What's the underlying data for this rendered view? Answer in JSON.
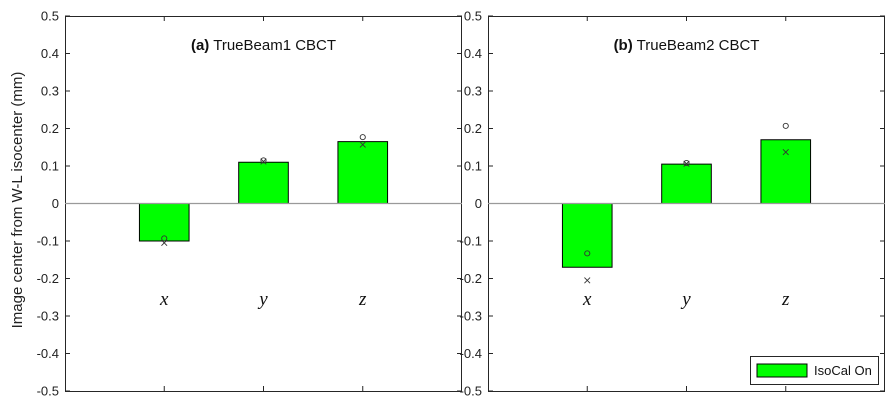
{
  "ylabel": "Image center from W-L isocenter (mm)",
  "legend": {
    "label": "IsoCal On",
    "color": "#00ff00"
  },
  "colors": {
    "bar": "#00ff00",
    "edge": "#000000",
    "zero_line": "#9a9a9a",
    "marker": "#333333"
  },
  "chart_data": [
    {
      "type": "bar",
      "title_tag": "(a)",
      "title": "TrueBeam1 CBCT",
      "categories": [
        "x",
        "y",
        "z"
      ],
      "values": [
        -0.1,
        0.11,
        0.165
      ],
      "circle_markers": [
        -0.093,
        0.115,
        0.177
      ],
      "cross_markers": [
        -0.105,
        0.112,
        0.157
      ],
      "ylim": [
        -0.5,
        0.5
      ],
      "yticks": [
        "0.5",
        "0.4",
        "0.3",
        "0.2",
        "0.1",
        "0",
        "-0.1",
        "-0.2",
        "-0.3",
        "-0.4",
        "-0.5"
      ],
      "ylabel": "Image center from W-L isocenter (mm)",
      "legend": false
    },
    {
      "type": "bar",
      "title_tag": "(b)",
      "title": "TrueBeam2 CBCT",
      "categories": [
        "x",
        "y",
        "z"
      ],
      "values": [
        -0.17,
        0.105,
        0.17
      ],
      "circle_markers": [
        -0.133,
        0.108,
        0.207
      ],
      "cross_markers": [
        -0.205,
        0.106,
        0.137
      ],
      "ylim": [
        -0.5,
        0.5
      ],
      "yticks": [
        "0.5",
        "0.4",
        "0.3",
        "0.2",
        "0.1",
        "0",
        "-0.1",
        "-0.2",
        "-0.3",
        "-0.4",
        "-0.5"
      ],
      "legend": "bottom-right"
    }
  ]
}
